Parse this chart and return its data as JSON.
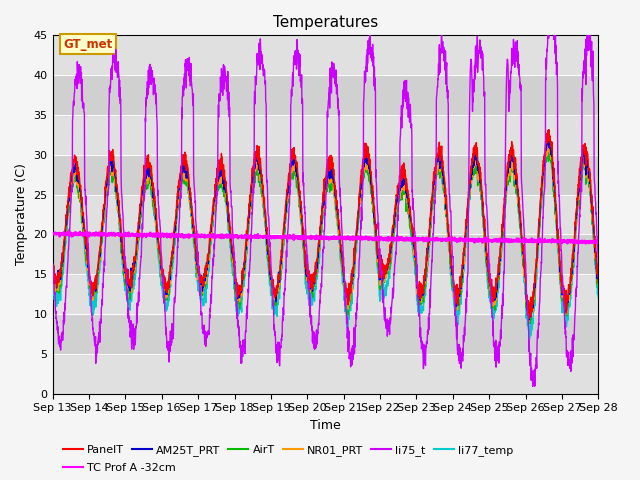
{
  "title": "Temperatures",
  "xlabel": "Time",
  "ylabel": "Temperature (C)",
  "ylim": [
    0,
    45
  ],
  "yticks": [
    0,
    5,
    10,
    15,
    20,
    25,
    30,
    35,
    40,
    45
  ],
  "date_start": 13,
  "date_end": 28,
  "colors": {
    "PanelT": "#ff0000",
    "AM25T_PRT": "#0000cc",
    "AirT": "#00bb00",
    "NR01_PRT": "#ff9900",
    "li75_t": "#cc00ff",
    "li77_temp": "#00cccc",
    "TC_Prof_A": "#ff00ff"
  },
  "band_colors": [
    "#e8e8e8",
    "#d8d8d8"
  ],
  "annotation_text": "GT_met",
  "annotation_color": "#cc3300",
  "annotation_bg": "#ffffcc",
  "annotation_border": "#cc9900",
  "title_fontsize": 11,
  "axis_fontsize": 9,
  "tick_fontsize": 8,
  "legend_fontsize": 8
}
